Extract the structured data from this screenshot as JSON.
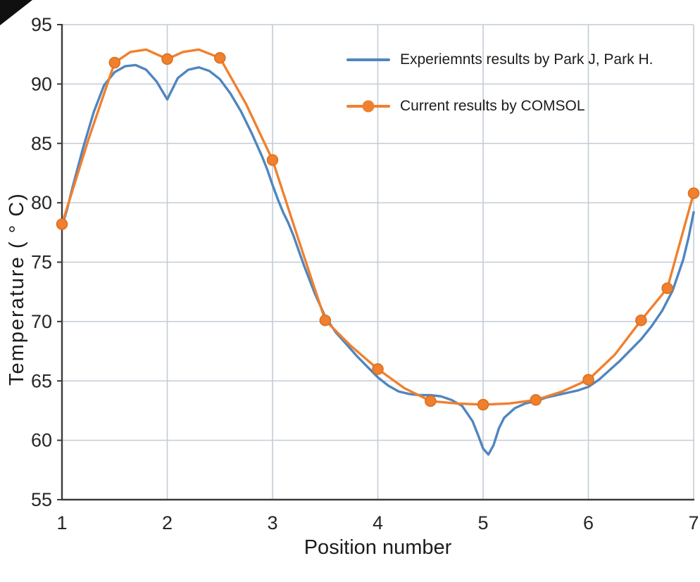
{
  "chart_data": {
    "type": "line",
    "title": "",
    "xlabel": "Position number",
    "ylabel": "Temperature ( ° C)",
    "xlim": [
      1,
      7
    ],
    "ylim": [
      55,
      95
    ],
    "x_ticks": [
      1,
      2,
      3,
      4,
      5,
      6,
      7
    ],
    "y_ticks": [
      55,
      60,
      65,
      70,
      75,
      80,
      85,
      90,
      95
    ],
    "grid": true,
    "legend_position": "inside-top-right",
    "colors": {
      "grid": "#c4ccd6",
      "axis": "#3a3a3a",
      "text": "#262626",
      "background": "#ffffff"
    },
    "series": [
      {
        "name": "Experiemnts results by Park J, Park H.",
        "color": "#4f86bf",
        "marker": "none",
        "points": [
          [
            1.0,
            78.0
          ],
          [
            1.05,
            79.5
          ],
          [
            1.1,
            81.3
          ],
          [
            1.2,
            84.6
          ],
          [
            1.3,
            87.6
          ],
          [
            1.4,
            89.9
          ],
          [
            1.5,
            91.0
          ],
          [
            1.6,
            91.5
          ],
          [
            1.7,
            91.6
          ],
          [
            1.8,
            91.2
          ],
          [
            1.9,
            90.2
          ],
          [
            2.0,
            88.7
          ],
          [
            2.05,
            89.6
          ],
          [
            2.1,
            90.5
          ],
          [
            2.2,
            91.2
          ],
          [
            2.3,
            91.4
          ],
          [
            2.4,
            91.1
          ],
          [
            2.5,
            90.4
          ],
          [
            2.6,
            89.2
          ],
          [
            2.7,
            87.7
          ],
          [
            2.8,
            85.9
          ],
          [
            2.9,
            83.9
          ],
          [
            2.95,
            82.8
          ],
          [
            3.0,
            81.5
          ],
          [
            3.05,
            80.3
          ],
          [
            3.1,
            79.2
          ],
          [
            3.15,
            78.3
          ],
          [
            3.2,
            77.2
          ],
          [
            3.3,
            74.7
          ],
          [
            3.4,
            72.4
          ],
          [
            3.5,
            70.4
          ],
          [
            3.6,
            69.1
          ],
          [
            3.7,
            68.1
          ],
          [
            3.8,
            67.1
          ],
          [
            3.9,
            66.2
          ],
          [
            4.0,
            65.3
          ],
          [
            4.1,
            64.6
          ],
          [
            4.2,
            64.1
          ],
          [
            4.3,
            63.9
          ],
          [
            4.4,
            63.8
          ],
          [
            4.5,
            63.8
          ],
          [
            4.6,
            63.7
          ],
          [
            4.7,
            63.4
          ],
          [
            4.8,
            62.9
          ],
          [
            4.9,
            61.6
          ],
          [
            4.95,
            60.5
          ],
          [
            5.0,
            59.3
          ],
          [
            5.05,
            58.8
          ],
          [
            5.1,
            59.6
          ],
          [
            5.15,
            61.0
          ],
          [
            5.2,
            61.9
          ],
          [
            5.3,
            62.7
          ],
          [
            5.4,
            63.1
          ],
          [
            5.5,
            63.3
          ],
          [
            5.6,
            63.6
          ],
          [
            5.7,
            63.8
          ],
          [
            5.8,
            64.0
          ],
          [
            5.9,
            64.2
          ],
          [
            6.0,
            64.5
          ],
          [
            6.1,
            65.1
          ],
          [
            6.2,
            65.9
          ],
          [
            6.3,
            66.7
          ],
          [
            6.4,
            67.6
          ],
          [
            6.5,
            68.5
          ],
          [
            6.6,
            69.6
          ],
          [
            6.7,
            70.9
          ],
          [
            6.8,
            72.6
          ],
          [
            6.9,
            75.2
          ],
          [
            6.95,
            77.0
          ],
          [
            7.0,
            79.2
          ]
        ]
      },
      {
        "name": "Current results by COMSOL",
        "color": "#f0802e",
        "marker": "circle",
        "points": [
          [
            1.0,
            78.2
          ],
          [
            1.25,
            85.3
          ],
          [
            1.5,
            91.8
          ],
          [
            1.65,
            92.7
          ],
          [
            1.8,
            92.9
          ],
          [
            2.0,
            92.1
          ],
          [
            2.15,
            92.7
          ],
          [
            2.3,
            92.9
          ],
          [
            2.5,
            92.2
          ],
          [
            2.75,
            88.3
          ],
          [
            3.0,
            83.6
          ],
          [
            3.25,
            76.8
          ],
          [
            3.5,
            70.1
          ],
          [
            3.75,
            67.9
          ],
          [
            4.0,
            66.0
          ],
          [
            4.25,
            64.4
          ],
          [
            4.5,
            63.3
          ],
          [
            4.75,
            63.1
          ],
          [
            5.0,
            63.0
          ],
          [
            5.25,
            63.1
          ],
          [
            5.5,
            63.4
          ],
          [
            5.75,
            64.1
          ],
          [
            6.0,
            65.1
          ],
          [
            6.25,
            67.2
          ],
          [
            6.5,
            70.1
          ],
          [
            6.75,
            72.8
          ],
          [
            7.0,
            80.8
          ]
        ],
        "marker_points": [
          [
            1.0,
            78.2
          ],
          [
            1.5,
            91.8
          ],
          [
            2.0,
            92.1
          ],
          [
            2.5,
            92.2
          ],
          [
            3.0,
            83.6
          ],
          [
            3.5,
            70.1
          ],
          [
            4.0,
            66.0
          ],
          [
            4.5,
            63.3
          ],
          [
            5.0,
            63.0
          ],
          [
            5.5,
            63.4
          ],
          [
            6.0,
            65.1
          ],
          [
            6.5,
            70.1
          ],
          [
            6.75,
            72.8
          ],
          [
            7.0,
            80.8
          ]
        ]
      }
    ]
  }
}
